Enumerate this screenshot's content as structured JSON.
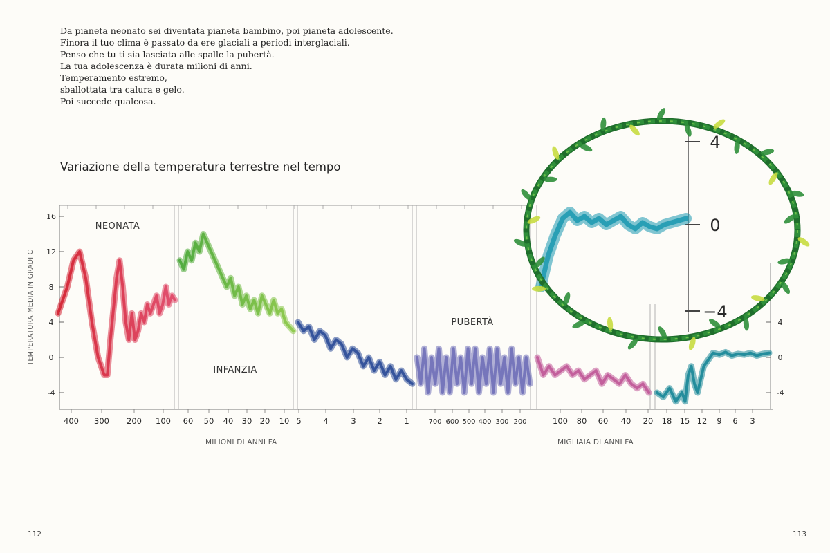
{
  "text": {
    "lines": [
      "Da pianeta neonato sei diventata pianeta bambino, poi pianeta adolescente.",
      "Finora il tuo clima è passato da ere glaciali a periodi interglaciali.",
      "Penso che tu ti sia lasciata alle spalle la pubertà.",
      "La tua adolescenza è durata milioni di anni.",
      "Temperamento estremo,",
      "sballottata tra calura e gelo.",
      "Poi succede qualcosa."
    ]
  },
  "page": {
    "left_number": "112",
    "right_number": "113"
  },
  "chart_data": {
    "type": "line",
    "title": "Variazione della temperatura terrestre nel tempo",
    "ylabel": "TEMPERATURA MEDIA IN GRADI C",
    "ylim": [
      -6,
      17
    ],
    "yticks_left": [
      "16",
      "12",
      "8",
      "4",
      "0",
      "-4"
    ],
    "yticks_right": [
      "4",
      "0",
      "-4"
    ],
    "inset_yticks": [
      "4",
      "0",
      "-4"
    ],
    "xlabel_millions": "MILIONI DI ANNI FA",
    "xlabel_thousands": "MIGLIAIA DI ANNI FA",
    "eras": [
      {
        "label": "NEONATA"
      },
      {
        "label": "INFANZIA"
      },
      {
        "label": "PUBERTÀ"
      }
    ],
    "colors": {
      "neonata": "#d32030",
      "neonata_end": "#e04868",
      "infanzia": "#4aa838",
      "infanzia_end": "#8cc848",
      "miocene": "#2c4c98",
      "pleistocene": "#7070b8",
      "migliaia": "#c05898",
      "olocene": "#1a8898",
      "inset": "#1a98b0",
      "wreath": "#2f8f3a",
      "leaf": "#c8dc40"
    },
    "panels": [
      {
        "name": "neonata",
        "x_ticks": [
          "400",
          "300",
          "200",
          "100"
        ],
        "x": [
          450,
          440,
          420,
          400,
          380,
          360,
          340,
          320,
          300,
          290,
          280,
          260,
          250,
          240,
          230,
          220,
          210,
          200,
          190,
          180,
          170,
          160,
          150,
          140,
          130,
          120,
          110,
          100,
          90,
          80,
          70
        ],
        "y": [
          5,
          6,
          8,
          11,
          12,
          9,
          4,
          0,
          -2,
          -2,
          2,
          9,
          11,
          8,
          4,
          2,
          5,
          2,
          3,
          5,
          4,
          6,
          5,
          6,
          7,
          5,
          6,
          8,
          6,
          7,
          6.5
        ]
      },
      {
        "name": "infanzia",
        "x_ticks": [
          "60",
          "50",
          "40",
          "30",
          "20",
          "10"
        ],
        "x": [
          64,
          62,
          60,
          58,
          56,
          54,
          52,
          50,
          48,
          46,
          44,
          42,
          40,
          38,
          36,
          34,
          32,
          30,
          28,
          26,
          24,
          22,
          20,
          18,
          16,
          14,
          12,
          10,
          8,
          6
        ],
        "y": [
          11,
          10,
          12,
          11,
          13,
          12,
          14,
          13,
          12,
          11,
          10,
          9,
          8,
          9,
          7,
          8,
          6,
          7,
          5.5,
          6.5,
          5,
          7,
          6,
          5,
          6.5,
          5,
          5.5,
          4,
          3.5,
          3
        ]
      },
      {
        "name": "miocene",
        "x_ticks": [
          "5",
          "4",
          "3",
          "2",
          "1"
        ],
        "x": [
          5,
          4.8,
          4.6,
          4.4,
          4.2,
          4,
          3.8,
          3.6,
          3.4,
          3.2,
          3,
          2.8,
          2.6,
          2.4,
          2.2,
          2,
          1.8,
          1.6,
          1.4,
          1.2,
          1,
          0.8
        ],
        "y": [
          4,
          3,
          3.5,
          2,
          3,
          2.5,
          1,
          2,
          1.5,
          0,
          1,
          0.5,
          -1,
          0,
          -1.5,
          -0.5,
          -2,
          -1,
          -2.5,
          -1.5,
          -2.5,
          -3
        ]
      },
      {
        "name": "pleistocene",
        "x_ticks": [
          "700",
          "600",
          "500",
          "400",
          "300",
          "200"
        ],
        "x": [
          750,
          730,
          710,
          690,
          670,
          650,
          630,
          610,
          590,
          570,
          550,
          530,
          510,
          490,
          470,
          450,
          430,
          410,
          390,
          370,
          350,
          330,
          310,
          290,
          270,
          250,
          230,
          210,
          190,
          170,
          150,
          130
        ],
        "y": [
          0,
          -3,
          1,
          -4,
          0,
          -3,
          1,
          -4,
          0,
          -4,
          1,
          -3,
          0,
          -4,
          1,
          -3,
          1,
          -4,
          0,
          -3,
          1,
          -4,
          1,
          -3,
          0,
          -4,
          1,
          -3,
          0,
          -4,
          0,
          -3
        ]
      },
      {
        "name": "migliaia",
        "x_ticks": [
          "100",
          "80",
          "60",
          "40",
          "20"
        ],
        "x": [
          115,
          110,
          105,
          100,
          95,
          90,
          85,
          80,
          75,
          70,
          65,
          60,
          55,
          50,
          45,
          40,
          35,
          30,
          25,
          20
        ],
        "y": [
          0,
          -2,
          -1,
          -2,
          -1.5,
          -1,
          -2,
          -1.5,
          -2.5,
          -2,
          -1.5,
          -3,
          -2,
          -2.5,
          -3,
          -2,
          -3,
          -3.5,
          -3,
          -4
        ]
      },
      {
        "name": "olocene",
        "x_ticks": [
          "18",
          "15",
          "12",
          "9",
          "6",
          "3"
        ],
        "x": [
          19,
          18,
          17,
          16,
          15,
          14.5,
          14,
          13.5,
          13,
          12.5,
          12,
          11.5,
          11,
          10.5,
          10,
          9,
          8,
          7,
          6,
          5,
          4,
          3,
          2,
          1
        ],
        "y": [
          -4,
          -4.5,
          -3.5,
          -5,
          -4,
          -5,
          -2,
          -1,
          -3,
          -4,
          -2.5,
          -1,
          -0.5,
          0,
          0.5,
          0.3,
          0.6,
          0.2,
          0.4,
          0.3,
          0.5,
          0.2,
          0.4,
          0.5
        ]
      },
      {
        "name": "inset",
        "x": [
          0,
          0.05,
          0.1,
          0.15,
          0.2,
          0.25,
          0.3,
          0.35,
          0.4,
          0.45,
          0.5,
          0.55,
          0.6,
          0.65,
          0.7,
          0.75,
          0.8,
          0.85,
          0.9,
          0.95,
          1
        ],
        "y": [
          -3,
          -1.5,
          -0.5,
          0.3,
          0.6,
          0.2,
          0.4,
          0.1,
          0.3,
          0,
          0.2,
          0.4,
          0,
          -0.2,
          0.1,
          -0.1,
          -0.2,
          0,
          0.1,
          0.2,
          0.3
        ]
      }
    ]
  }
}
